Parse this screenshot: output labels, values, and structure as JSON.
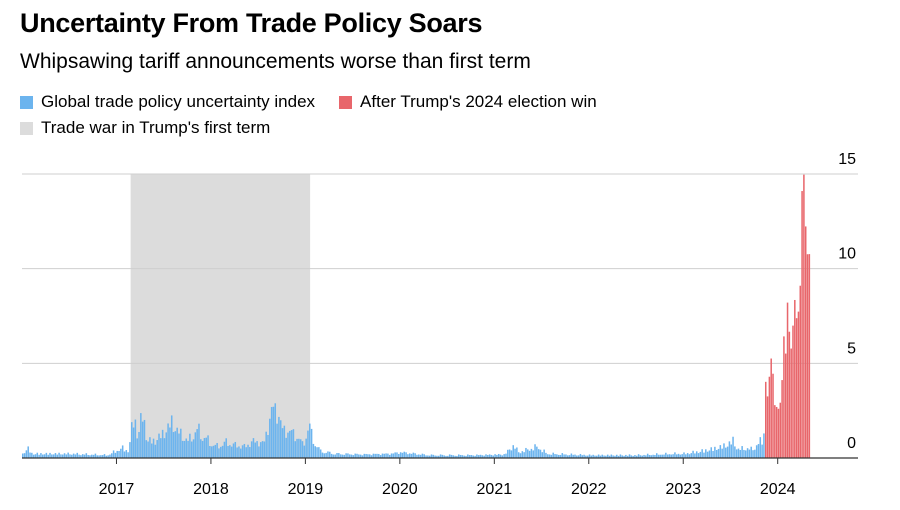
{
  "chart_data": {
    "type": "bar",
    "title": "Uncertainty From Trade Policy Soars",
    "subtitle": "Whipsawing tariff announcements worse than first term",
    "legend": [
      {
        "name": "Global trade policy uncertainty index",
        "color": "#6cb4ee"
      },
      {
        "name": "After Trump's 2024 election win",
        "color": "#e8666b"
      },
      {
        "name": "Trade war in Trump's first term",
        "color": "#dcdcdc"
      }
    ],
    "x_range": [
      2016.0,
      2024.85
    ],
    "ylim": [
      0,
      15
    ],
    "y_ticks": [
      0,
      5,
      10,
      15
    ],
    "x_ticks": [
      2017,
      2018,
      2019,
      2020,
      2021,
      2022,
      2023,
      2024
    ],
    "shaded_period": {
      "label": "Trade war in Trump's first term",
      "start": 2017.15,
      "end": 2019.05
    },
    "election_split": 2023.85,
    "anchors": [
      [
        2016.0,
        0.3
      ],
      [
        2016.05,
        0.7
      ],
      [
        2016.1,
        0.3
      ],
      [
        2016.5,
        0.3
      ],
      [
        2016.9,
        0.2
      ],
      [
        2017.05,
        0.7
      ],
      [
        2017.12,
        0.5
      ],
      [
        2017.18,
        3.1
      ],
      [
        2017.22,
        1.5
      ],
      [
        2017.27,
        3.2
      ],
      [
        2017.32,
        1.2
      ],
      [
        2017.4,
        1.2
      ],
      [
        2017.5,
        1.8
      ],
      [
        2017.58,
        2.5
      ],
      [
        2017.65,
        1.8
      ],
      [
        2017.75,
        1.2
      ],
      [
        2017.85,
        2.0
      ],
      [
        2017.95,
        1.3
      ],
      [
        2018.05,
        0.8
      ],
      [
        2018.15,
        1.1
      ],
      [
        2018.25,
        0.9
      ],
      [
        2018.35,
        0.8
      ],
      [
        2018.45,
        1.2
      ],
      [
        2018.55,
        1.0
      ],
      [
        2018.65,
        3.6
      ],
      [
        2018.7,
        3.2
      ],
      [
        2018.75,
        2.0
      ],
      [
        2018.85,
        1.8
      ],
      [
        2018.92,
        1.4
      ],
      [
        2018.97,
        0.9
      ],
      [
        2019.03,
        2.3
      ],
      [
        2019.08,
        1.2
      ],
      [
        2019.15,
        0.5
      ],
      [
        2019.3,
        0.3
      ],
      [
        2019.6,
        0.25
      ],
      [
        2019.9,
        0.3
      ],
      [
        2020.0,
        0.4
      ],
      [
        2020.3,
        0.2
      ],
      [
        2020.8,
        0.2
      ],
      [
        2021.1,
        0.25
      ],
      [
        2021.2,
        0.9
      ],
      [
        2021.25,
        0.4
      ],
      [
        2021.35,
        0.6
      ],
      [
        2021.45,
        0.8
      ],
      [
        2021.55,
        0.3
      ],
      [
        2022.0,
        0.2
      ],
      [
        2022.5,
        0.2
      ],
      [
        2022.9,
        0.3
      ],
      [
        2023.0,
        0.3
      ],
      [
        2023.2,
        0.5
      ],
      [
        2023.35,
        0.7
      ],
      [
        2023.45,
        0.9
      ],
      [
        2023.52,
        1.2
      ],
      [
        2023.57,
        0.6
      ],
      [
        2023.65,
        0.7
      ],
      [
        2023.72,
        0.6
      ],
      [
        2023.8,
        1.1
      ],
      [
        2023.84,
        1.2
      ],
      [
        2023.86,
        4.4
      ],
      [
        2023.88,
        3.0
      ],
      [
        2023.9,
        4.1
      ],
      [
        2023.93,
        5.6
      ],
      [
        2023.96,
        2.8
      ],
      [
        2024.0,
        2.6
      ],
      [
        2024.03,
        3.1
      ],
      [
        2024.06,
        6.7
      ],
      [
        2024.08,
        5.3
      ],
      [
        2024.1,
        8.9
      ],
      [
        2024.12,
        6.0
      ],
      [
        2024.14,
        5.7
      ],
      [
        2024.17,
        8.5
      ],
      [
        2024.2,
        7.0
      ],
      [
        2024.23,
        8.9
      ],
      [
        2024.25,
        14.1
      ],
      [
        2024.27,
        15.0
      ],
      [
        2024.29,
        12.0
      ],
      [
        2024.31,
        10.6
      ],
      [
        2024.33,
        10.8
      ],
      [
        2024.34,
        0.0
      ]
    ]
  }
}
